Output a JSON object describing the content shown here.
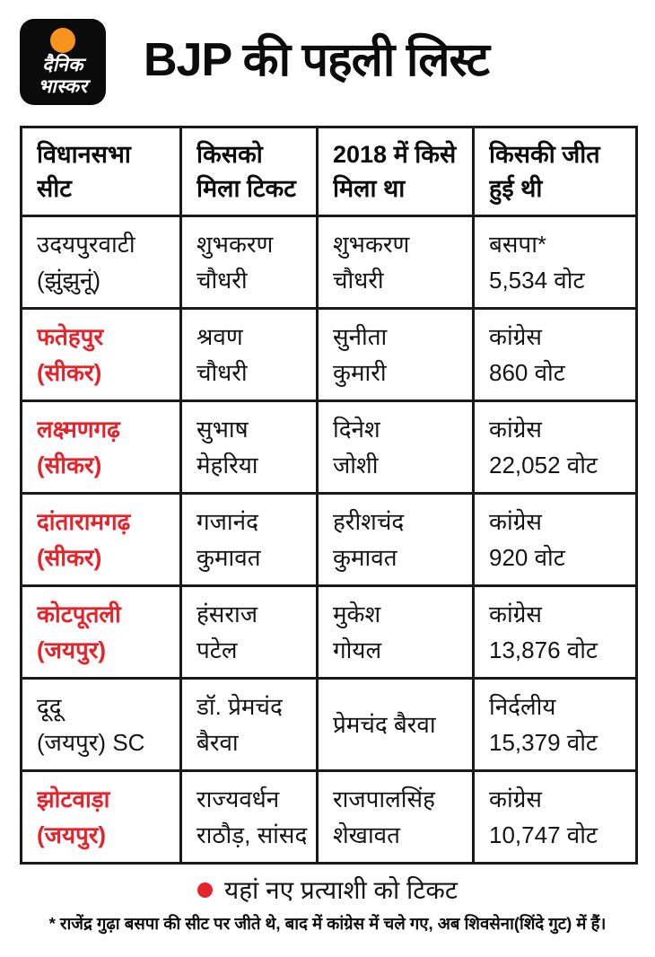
{
  "page": {
    "background": "#ffffff",
    "accent_red": "#e4232b",
    "border_color": "#1a1a1a"
  },
  "header": {
    "title": "BJP की पहली लिस्ट",
    "logo": {
      "line1": "दैनिक",
      "line2": "भास्कर",
      "bg": "#0b0b0b",
      "sun_color": "#f7941e"
    }
  },
  "table": {
    "headers": [
      [
        "विधानसभा",
        "सीट"
      ],
      [
        "किसको",
        "मिला टिकट"
      ],
      [
        "2018 में किसे",
        "मिला था"
      ],
      [
        "किसकी जीत",
        "हुई थी"
      ]
    ],
    "rows": [
      {
        "seat": [
          "उदयपुरवाटी",
          "(झुंझुनूं)"
        ],
        "seat_red": false,
        "ticket": [
          "शुभकरण",
          "चौधरी"
        ],
        "y2018": [
          "शुभकरण",
          "चौधरी"
        ],
        "winner": [
          "बसपा*",
          "5,534 वोट"
        ]
      },
      {
        "seat": [
          "फतेहपुर",
          "(सीकर)"
        ],
        "seat_red": true,
        "ticket": [
          "श्रवण",
          "चौधरी"
        ],
        "y2018": [
          "सुनीता",
          "कुमारी"
        ],
        "winner": [
          "कांग्रेस",
          "860 वोट"
        ]
      },
      {
        "seat": [
          "लक्ष्मणगढ़",
          "(सीकर)"
        ],
        "seat_red": true,
        "ticket": [
          "सुभाष",
          "मेहरिया"
        ],
        "y2018": [
          "दिनेश",
          "जोशी"
        ],
        "winner": [
          "कांग्रेस",
          "22,052 वोट"
        ]
      },
      {
        "seat": [
          "दांतारामगढ़",
          "(सीकर)"
        ],
        "seat_red": true,
        "ticket": [
          "गजानंद",
          "कुमावत"
        ],
        "y2018": [
          "हरीशचंद",
          "कुमावत"
        ],
        "winner": [
          "कांग्रेस",
          "920 वोट"
        ]
      },
      {
        "seat": [
          "कोटपूतली",
          "(जयपुर)"
        ],
        "seat_red": true,
        "ticket": [
          "हंसराज",
          "पटेल"
        ],
        "y2018": [
          "मुकेश",
          "गोयल"
        ],
        "winner": [
          "कांग्रेस",
          "13,876 वोट"
        ]
      },
      {
        "seat": [
          "दूदू",
          "(जयपुर) SC"
        ],
        "seat_red": false,
        "ticket": [
          "डॉ. प्रेमचंद",
          "बैरवा"
        ],
        "y2018": [
          "प्रेमचंद बैरवा",
          ""
        ],
        "winner": [
          "निर्दलीय",
          "15,379 वोट"
        ]
      },
      {
        "seat": [
          "झोटवाड़ा",
          "(जयपुर)"
        ],
        "seat_red": true,
        "ticket": [
          "राज्यवर्धन",
          "राठौड़, सांसद"
        ],
        "y2018": [
          "राजपालसिंह",
          "शेखावत"
        ],
        "winner": [
          "कांग्रेस",
          "10,747 वोट"
        ]
      }
    ]
  },
  "legend": {
    "text": "यहां नए प्रत्याशी को टिकट"
  },
  "footnote": "* राजेंद्र गुढ़ा बसपा की सीट पर जीते थे, बाद में कांग्रेस में चले गए, अब शिवसेना(शिंदे गुट) में हैं।"
}
